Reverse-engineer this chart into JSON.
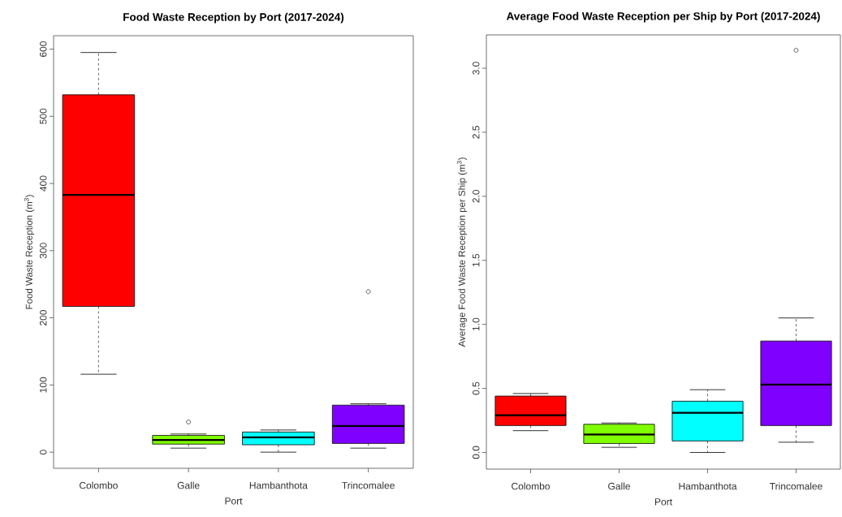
{
  "chart_data": [
    {
      "type": "box",
      "title": "Food Waste Reception by Port (2017-2024)",
      "xlabel": "Port",
      "ylabel": "Food Waste Reception (m$^{3}$)",
      "categories": [
        "Colombo",
        "Galle",
        "Hambanthota",
        "Trincomalee"
      ],
      "colors": [
        "#ff0000",
        "#80ff00",
        "#00ffff",
        "#8000ff"
      ],
      "boxes": [
        {
          "low": 116,
          "q1": 217,
          "median": 383,
          "q3": 532,
          "high": 595
        },
        {
          "low": 6,
          "q1": 12,
          "median": 18,
          "q3": 25,
          "high": 27,
          "outliers": [
            45
          ]
        },
        {
          "low": 0,
          "q1": 11,
          "median": 22,
          "q3": 30,
          "high": 33
        },
        {
          "low": 6,
          "q1": 13,
          "median": 39,
          "q3": 70,
          "high": 72,
          "outliers": [
            239
          ]
        }
      ],
      "ylim": [
        -24,
        620
      ],
      "yticks": [
        0,
        100,
        200,
        300,
        400,
        500,
        600
      ],
      "marker": "circle"
    },
    {
      "type": "box",
      "title": "Average Food Waste Reception per Ship by Port (2017-2024)",
      "xlabel": "Port",
      "ylabel": "Average Food Waste Reception per Ship  (m$^{3}$)",
      "categories": [
        "Colombo",
        "Galle",
        "Hambanthota",
        "Trincomalee"
      ],
      "colors": [
        "#ff0000",
        "#80ff00",
        "#00ffff",
        "#8000ff"
      ],
      "boxes": [
        {
          "low": 0.17,
          "q1": 0.21,
          "median": 0.29,
          "q3": 0.44,
          "high": 0.46
        },
        {
          "low": 0.04,
          "q1": 0.07,
          "median": 0.14,
          "q3": 0.22,
          "high": 0.23
        },
        {
          "low": 0.0,
          "q1": 0.09,
          "median": 0.31,
          "q3": 0.4,
          "high": 0.49
        },
        {
          "low": 0.08,
          "q1": 0.21,
          "median": 0.53,
          "q3": 0.87,
          "high": 1.05,
          "outliers": [
            3.14
          ]
        }
      ],
      "ylim": [
        -0.13,
        3.26
      ],
      "yticks": [
        {
          "value": 0,
          "label": "0.0"
        },
        0.5,
        {
          "value": 1,
          "label": "1.0"
        },
        1.5,
        {
          "value": 2,
          "label": "2.0"
        },
        2.5,
        {
          "value": 3,
          "label": "3.0"
        }
      ],
      "marker": "circle"
    }
  ]
}
